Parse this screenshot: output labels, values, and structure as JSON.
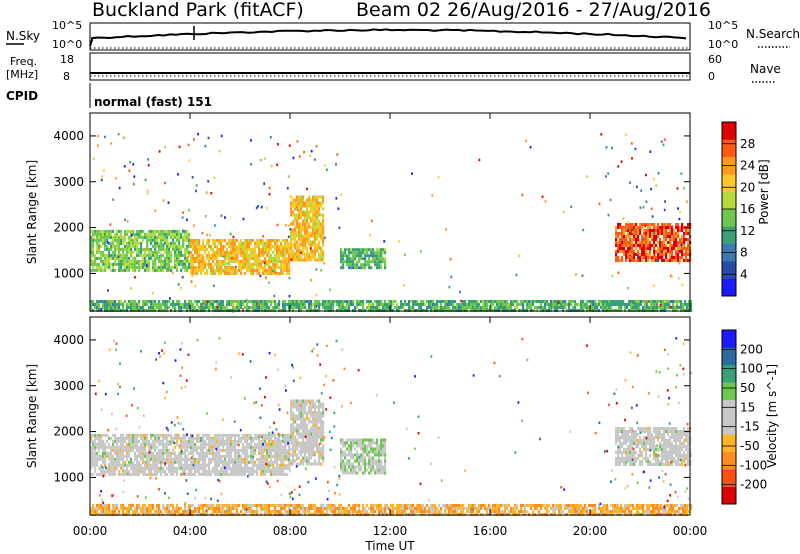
{
  "header": {
    "station": "Buckland Park (fitACF)",
    "beam_dates": "Beam 02 26/Aug/2016 - 27/Aug/2016"
  },
  "top_panels": {
    "nsky_label": "N.Sky",
    "nsearch_label": "N.Search",
    "nsky_ticks": [
      "10^5",
      "10^0"
    ],
    "nsearch_ticks": [
      "10^5",
      "10^0"
    ],
    "freq_label_1": "Freq.",
    "freq_label_2": "[MHz]",
    "freq_ticks": [
      "18",
      "8"
    ],
    "nave_label": "Nave",
    "nave_ticks": [
      "60",
      "0"
    ],
    "cpid_label": "CPID",
    "cpid_text": "normal (fast) 151"
  },
  "colors": {
    "power": [
      "#1a1aff",
      "#2a4aa8",
      "#3a7ab0",
      "#3aa078",
      "#6ec850",
      "#b4dc3c",
      "#ffc828",
      "#ff9a1e",
      "#ff5a14",
      "#dc0000"
    ],
    "velocity": [
      "#dc0000",
      "#ff5014",
      "#ff8c1e",
      "#ffb428",
      "#c8c8c8",
      "#c8c8c8",
      "#6ec850",
      "#3aa078",
      "#2a6aa0",
      "#1a1aff"
    ]
  },
  "chart_data": [
    {
      "type": "heatmap",
      "name": "power",
      "ylabel": "Slant Range [km]",
      "ylim": [
        180,
        4500
      ],
      "yticks": [
        "1000",
        "2000",
        "3000",
        "4000"
      ],
      "colorbar_label": "Power [dB]",
      "colorbar_ticks": [
        "4",
        "8",
        "12",
        "16",
        "20",
        "24",
        "28"
      ],
      "colorbar_range": [
        0,
        30
      ],
      "regions": [
        {
          "t_start": 0.0,
          "t_end": 4.0,
          "r_low": 1050,
          "r_high": 1950,
          "value": 14
        },
        {
          "t_start": 4.0,
          "t_end": 8.0,
          "r_low": 1000,
          "r_high": 1750,
          "value": 20
        },
        {
          "t_start": 8.0,
          "t_end": 9.3,
          "r_low": 1300,
          "r_high": 2700,
          "value": 20
        },
        {
          "t_start": 10.0,
          "t_end": 11.8,
          "r_low": 1100,
          "r_high": 1550,
          "value": 12
        },
        {
          "t_start": 21.0,
          "t_end": 24.0,
          "r_low": 1300,
          "r_high": 2100,
          "value": 26
        },
        {
          "t_start": 0.0,
          "t_end": 24.0,
          "r_low": 200,
          "r_high": 420,
          "value": 12
        }
      ]
    },
    {
      "type": "heatmap",
      "name": "velocity",
      "ylabel": "Slant Range [km]",
      "ylim": [
        180,
        4500
      ],
      "yticks": [
        "1000",
        "2000",
        "3000",
        "4000"
      ],
      "colorbar_label": "Velocity [m s^-1]",
      "colorbar_ticks": [
        "200",
        "100",
        "50",
        "15",
        "-15",
        "-50",
        "-100",
        "-200"
      ],
      "colorbar_range": [
        -250,
        250
      ],
      "regions": [
        {
          "t_start": 0.0,
          "t_end": 8.0,
          "r_low": 1050,
          "r_high": 1950,
          "value": 0
        },
        {
          "t_start": 8.0,
          "t_end": 9.3,
          "r_low": 1300,
          "r_high": 2700,
          "value": 0
        },
        {
          "t_start": 10.0,
          "t_end": 11.8,
          "r_low": 1100,
          "r_high": 1850,
          "value": 30
        },
        {
          "t_start": 21.0,
          "t_end": 24.0,
          "r_low": 1300,
          "r_high": 2100,
          "value": 0
        },
        {
          "t_start": 0.0,
          "t_end": 24.0,
          "r_low": 200,
          "r_high": 420,
          "value": -80
        }
      ]
    }
  ],
  "xaxis": {
    "label": "Time UT",
    "ticks": [
      "00:00",
      "04:00",
      "08:00",
      "12:00",
      "16:00",
      "20:00",
      "00:00"
    ],
    "range": [
      0,
      24
    ]
  }
}
